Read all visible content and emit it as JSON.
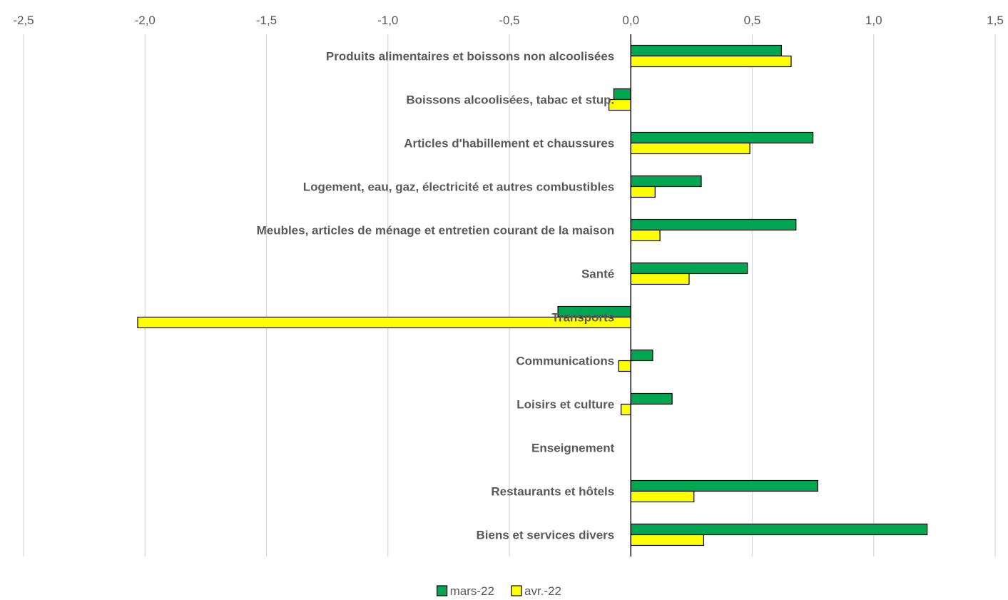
{
  "chart_data": {
    "type": "bar",
    "orientation": "horizontal",
    "categories": [
      "Produits alimentaires et boissons non alcoolisées",
      "Boissons alcoolisées, tabac et stup.",
      "Articles d'habillement et chaussures",
      "Logement, eau, gaz, électricité et autres combustibles",
      "Meubles, articles de ménage et entretien courant de la maison",
      "Santé",
      "Transports",
      "Communications",
      "Loisirs et culture",
      "Enseignement",
      "Restaurants et hôtels",
      "Biens et services divers"
    ],
    "series": [
      {
        "name": "mars-22",
        "color": "#00A651",
        "values": [
          0.62,
          -0.07,
          0.75,
          0.29,
          0.68,
          0.48,
          -0.3,
          0.09,
          0.17,
          0.0,
          0.77,
          1.22
        ]
      },
      {
        "name": "avr.-22",
        "color": "#FFFF00",
        "values": [
          0.66,
          -0.09,
          0.49,
          0.1,
          0.12,
          0.24,
          -2.03,
          -0.05,
          -0.04,
          0.0,
          0.26,
          0.3
        ]
      }
    ],
    "xlim": [
      -2.5,
      1.5
    ],
    "xticks": [
      -2.5,
      -2.0,
      -1.5,
      -1.0,
      -0.5,
      0.0,
      0.5,
      1.0,
      1.5
    ],
    "xtick_labels": [
      "-2,5",
      "-2,0",
      "-1,5",
      "-1,0",
      "-0,5",
      "0,0",
      "0,5",
      "1,0",
      "1,5"
    ],
    "grid": true,
    "x_axis_position": "top",
    "legend_position": "bottom-center",
    "title": "",
    "xlabel": "",
    "ylabel": ""
  }
}
